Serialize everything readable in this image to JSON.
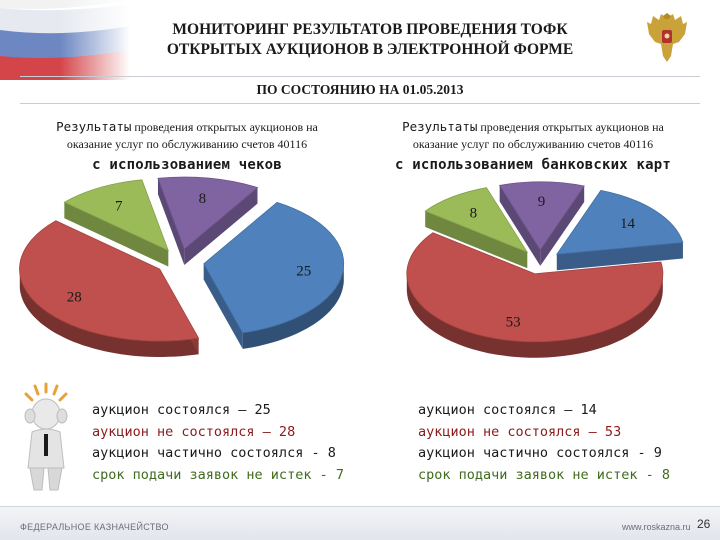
{
  "header": {
    "title_line1": "МОНИТОРИНГ РЕЗУЛЬТАТОВ ПРОВЕДЕНИЯ ТОФК",
    "title_line2": "ОТКРЫТЫХ АУКЦИОНОВ В ЭЛЕКТРОННОЙ ФОРМЕ",
    "date_line": "ПО СОСТОЯНИЮ НА 01.05.2013"
  },
  "footer": {
    "left": "ФЕДЕРАЛЬНОЕ КАЗНАЧЕЙСТВО",
    "right": "www.roskazna.ru",
    "page": "26"
  },
  "chart_data": [
    {
      "type": "pie",
      "title_lead": "Результаты",
      "title_rest": " проведения открытых аукционов на",
      "title_line2": "оказание услуг по обслуживанию счетов 40116",
      "title_line3": "с использованием чеков",
      "categories": [
        "аукцион состоялся",
        "аукцион не состоялся",
        "аукцион частично состоялся",
        "срок подачи заявок не истек"
      ],
      "values": [
        25,
        28,
        8,
        7
      ],
      "colors": [
        "#4f81bd",
        "#c0504d",
        "#8064a2",
        "#9bbb59"
      ],
      "legend": [
        "аукцион состоялся – 25",
        "аукцион не состоялся – 28",
        "аукцион частично состоялся - 8",
        "срок подачи заявок не истек - 7"
      ],
      "legend_colors": [
        "#1a1a1a",
        "#8b1a1a",
        "#1a1a1a",
        "#3f6b1e"
      ]
    },
    {
      "type": "pie",
      "title_lead": "Результаты",
      "title_rest": " проведения открытых аукционов на",
      "title_line2": "оказание услуг по обслуживанию счетов 40116",
      "title_line3": "с использованием банковских карт",
      "categories": [
        "аукцион состоялся",
        "аукцион не состоялся",
        "аукцион частично состоялся",
        "срок подачи заявок не истек"
      ],
      "values": [
        14,
        53,
        9,
        8
      ],
      "colors": [
        "#4f81bd",
        "#c0504d",
        "#8064a2",
        "#9bbb59"
      ],
      "legend": [
        "аукцион состоялся – 14",
        "аукцион не состоялся – 53",
        "аукцион частично состоялся - 9",
        "срок подачи заявок не истек - 8"
      ],
      "legend_colors": [
        "#1a1a1a",
        "#8b1a1a",
        "#1a1a1a",
        "#3f6b1e"
      ]
    }
  ]
}
